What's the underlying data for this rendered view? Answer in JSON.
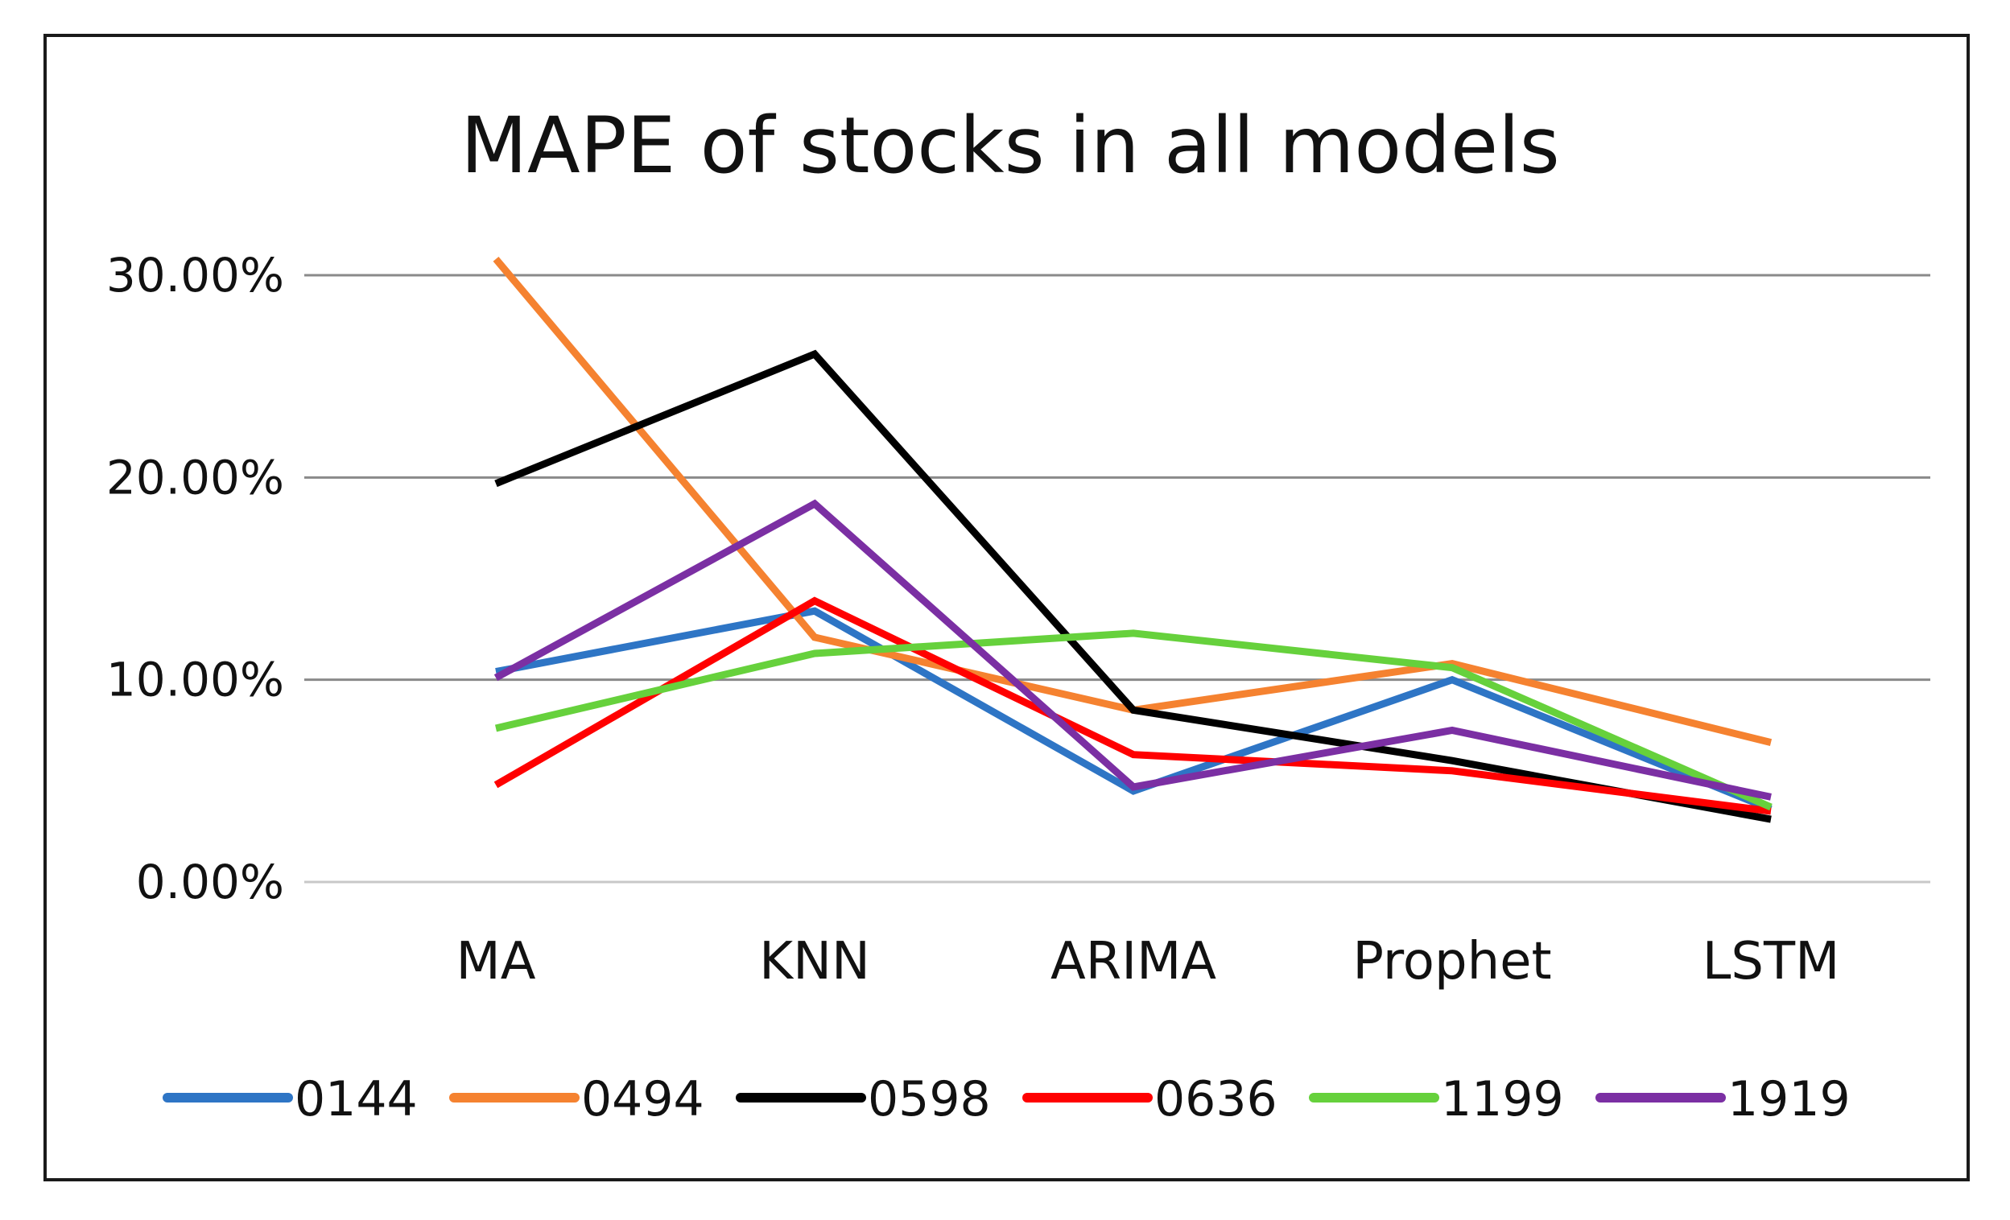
{
  "chart_data": {
    "type": "line",
    "title": "MAPE of stocks in all models",
    "xlabel": "",
    "ylabel": "",
    "categories": [
      "MA",
      "KNN",
      "ARIMA",
      "Prophet",
      "LSTM"
    ],
    "ylim": [
      0,
      30
    ],
    "yticks": [
      0,
      10,
      20,
      30
    ],
    "ytick_labels": [
      "0.00%",
      "10.00%",
      "20.00%",
      "30.00%"
    ],
    "grid": true,
    "legend_position": "bottom",
    "series": [
      {
        "name": "0144",
        "color": "#2E75C5",
        "values": [
          10.4,
          13.4,
          4.5,
          10.0,
          3.6
        ]
      },
      {
        "name": "0494",
        "color": "#F58230",
        "values": [
          30.8,
          12.1,
          8.5,
          10.8,
          6.9
        ]
      },
      {
        "name": "0598",
        "color": "#000000",
        "values": [
          19.7,
          26.1,
          8.5,
          6.0,
          3.1
        ]
      },
      {
        "name": "0636",
        "color": "#FF0000",
        "values": [
          4.8,
          13.9,
          6.3,
          5.5,
          3.5
        ]
      },
      {
        "name": "1199",
        "color": "#66D13C",
        "values": [
          7.6,
          11.3,
          12.3,
          10.6,
          3.7
        ]
      },
      {
        "name": "1919",
        "color": "#7B2FA3",
        "values": [
          10.1,
          18.7,
          4.7,
          7.5,
          4.2
        ]
      }
    ]
  }
}
